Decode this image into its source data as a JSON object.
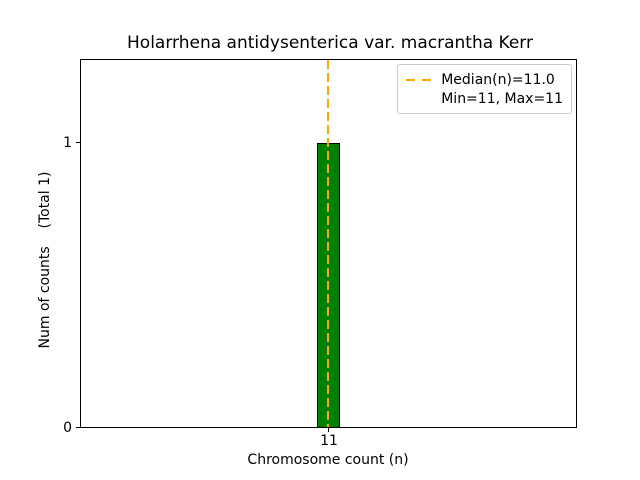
{
  "figure": {
    "background": "#ffffff"
  },
  "chart_data": {
    "type": "bar",
    "title": "Holarrhena antidysenterica var. macrantha Kerr",
    "xlabel": "Chromosome count (n)",
    "ylabel": "Num of counts    (Total 1)",
    "categories": [
      "11"
    ],
    "values": [
      1
    ],
    "xticks": [
      "11"
    ],
    "yticks": [
      "0",
      "1"
    ],
    "ylim": [
      0,
      1.29
    ],
    "grid": false,
    "bar_color": "#008000",
    "bar_edge_color": "#000000",
    "median_line": {
      "x": 11.0,
      "style": "dashed",
      "color": "#ffa500"
    },
    "legend": {
      "position": "upper-right",
      "entries": [
        {
          "label": "Median(n)=11.0",
          "sample": "orange-dashed-line"
        },
        {
          "label": "Min=11, Max=11",
          "sample": "none"
        }
      ]
    }
  }
}
